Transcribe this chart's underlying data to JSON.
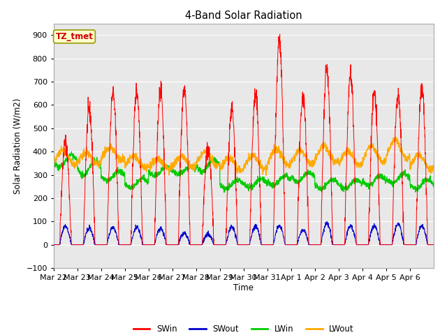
{
  "title": "4-Band Solar Radiation",
  "xlabel": "Time",
  "ylabel": "Solar Radiation (W/m2)",
  "ylim": [
    -100,
    950
  ],
  "yticks": [
    -100,
    0,
    100,
    200,
    300,
    400,
    500,
    600,
    700,
    800,
    900
  ],
  "fig_bg_color": "#ffffff",
  "plot_bg_color": "#e8e8e8",
  "annotation_text": "TZ_tmet",
  "annotation_color": "#cc0000",
  "annotation_bg": "#ffffcc",
  "annotation_border": "#999900",
  "legend_entries": [
    "SWin",
    "SWout",
    "LWin",
    "LWout"
  ],
  "line_colors": [
    "#ff0000",
    "#0000cc",
    "#00cc00",
    "#ffaa00"
  ],
  "x_tick_labels": [
    "Mar 22",
    "Mar 23",
    "Mar 24",
    "Mar 25",
    "Mar 26",
    "Mar 27",
    "Mar 28",
    "Mar 29",
    "Mar 30",
    "Mar 31",
    "Apr 1",
    "Apr 2",
    "Apr 3",
    "Apr 4",
    "Apr 5",
    "Apr 6"
  ],
  "num_days": 16,
  "points_per_day": 144,
  "seed": 42
}
